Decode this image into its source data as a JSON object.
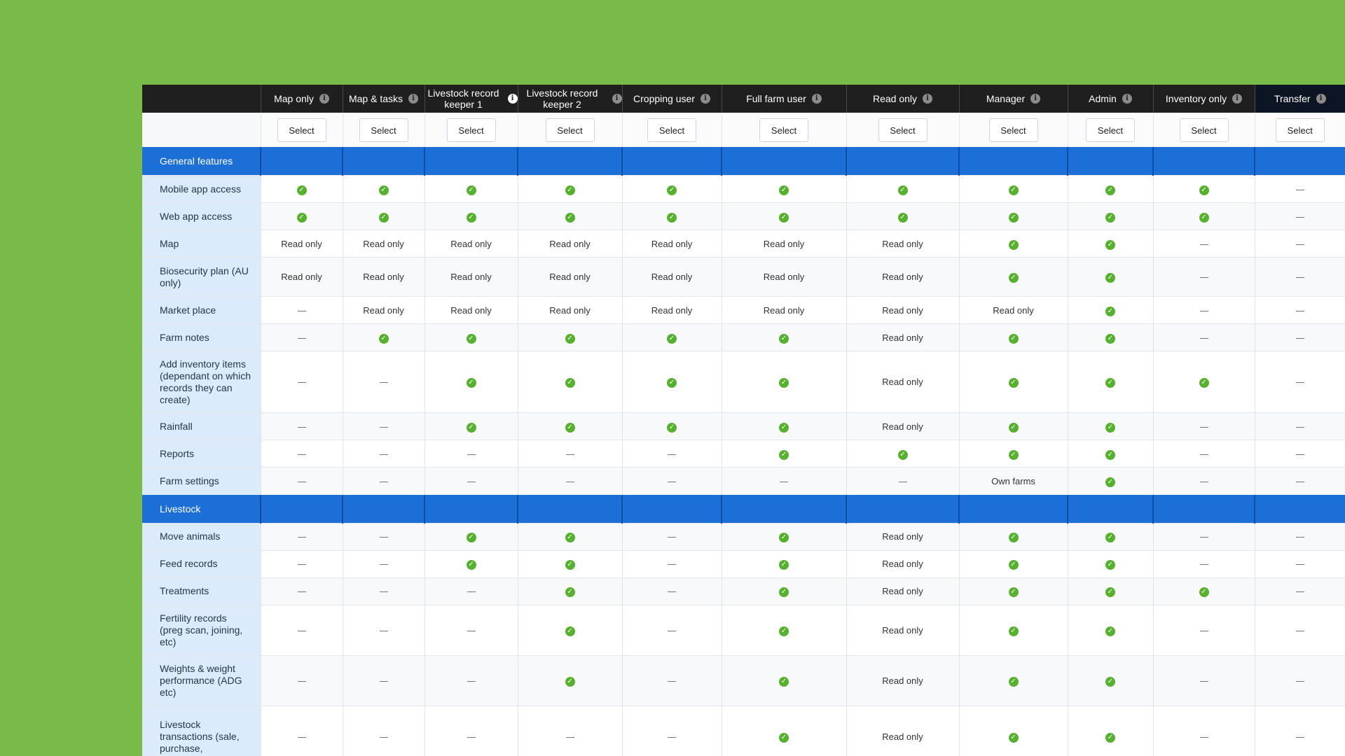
{
  "columns": [
    {
      "label": "Map only"
    },
    {
      "label": "Map & tasks"
    },
    {
      "label": "Livestock record keeper 1"
    },
    {
      "label": "Livestock record keeper 2"
    },
    {
      "label": "Cropping user"
    },
    {
      "label": "Full farm user"
    },
    {
      "label": "Read only"
    },
    {
      "label": "Manager"
    },
    {
      "label": "Admin"
    },
    {
      "label": "Inventory only"
    },
    {
      "label": "Transfer"
    }
  ],
  "select_label": "Select",
  "status_text": {
    "read_only": "Read only",
    "own_farms": "Own farms"
  },
  "icons": {
    "check": "check-circle-icon",
    "dash": "dash-icon",
    "info": "info-icon"
  },
  "colors": {
    "background": "#79bb48",
    "header": "#1f1f1f",
    "section": "#1c6fd6",
    "label_bg": "#dcebfb",
    "check": "#58b030"
  },
  "sections": [
    {
      "title": "General features",
      "rows": [
        {
          "label": "Mobile app access",
          "cells": [
            "Y",
            "Y",
            "Y",
            "Y",
            "Y",
            "Y",
            "Y",
            "Y",
            "Y",
            "Y",
            "-"
          ]
        },
        {
          "label": "Web app access",
          "cells": [
            "Y",
            "Y",
            "Y",
            "Y",
            "Y",
            "Y",
            "Y",
            "Y",
            "Y",
            "Y",
            "-"
          ]
        },
        {
          "label": "Map",
          "cells": [
            "Read only",
            "Read only",
            "Read only",
            "Read only",
            "Read only",
            "Read only",
            "Read only",
            "Y",
            "Y",
            "-",
            "-"
          ]
        },
        {
          "label": "Biosecurity plan (AU only)",
          "cells": [
            "Read only",
            "Read only",
            "Read only",
            "Read only",
            "Read only",
            "Read only",
            "Read only",
            "Y",
            "Y",
            "-",
            "-"
          ]
        },
        {
          "label": "Market place",
          "cells": [
            "-",
            "Read only",
            "Read only",
            "Read only",
            "Read only",
            "Read only",
            "Read only",
            "Read only",
            "Y",
            "-",
            "-"
          ]
        },
        {
          "label": "Farm notes",
          "cells": [
            "-",
            "Y",
            "Y",
            "Y",
            "Y",
            "Y",
            "Read only",
            "Y",
            "Y",
            "-",
            "-"
          ]
        },
        {
          "label": "Add inventory items (dependant on which records they can create)",
          "cells": [
            "-",
            "-",
            "Y",
            "Y",
            "Y",
            "Y",
            "Read only",
            "Y",
            "Y",
            "Y",
            "-"
          ]
        },
        {
          "label": "Rainfall",
          "cells": [
            "-",
            "-",
            "Y",
            "Y",
            "Y",
            "Y",
            "Read only",
            "Y",
            "Y",
            "-",
            "-"
          ]
        },
        {
          "label": "Reports",
          "cells": [
            "-",
            "-",
            "-",
            "-",
            "-",
            "Y",
            "Y",
            "Y",
            "Y",
            "-",
            "-"
          ]
        },
        {
          "label": "Farm settings",
          "cells": [
            "-",
            "-",
            "-",
            "-",
            "-",
            "-",
            "-",
            "Own farms",
            "Y",
            "-",
            "-"
          ]
        }
      ]
    },
    {
      "title": "Livestock",
      "rows": [
        {
          "label": "Move animals",
          "cells": [
            "-",
            "-",
            "Y",
            "Y",
            "-",
            "Y",
            "Read only",
            "Y",
            "Y",
            "-",
            "-"
          ]
        },
        {
          "label": "Feed records",
          "cells": [
            "-",
            "-",
            "Y",
            "Y",
            "-",
            "Y",
            "Read only",
            "Y",
            "Y",
            "-",
            "-"
          ]
        },
        {
          "label": "Treatments",
          "cells": [
            "-",
            "-",
            "-",
            "Y",
            "-",
            "Y",
            "Read only",
            "Y",
            "Y",
            "Y",
            "-"
          ]
        },
        {
          "label": "Fertility records (preg scan, joining, etc)",
          "cells": [
            "-",
            "-",
            "-",
            "Y",
            "-",
            "Y",
            "Read only",
            "Y",
            "Y",
            "-",
            "-"
          ]
        },
        {
          "label": "Weights & weight performance (ADG etc)",
          "cells": [
            "-",
            "-",
            "-",
            "Y",
            "-",
            "Y",
            "Read only",
            "Y",
            "Y",
            "-",
            "-"
          ]
        },
        {
          "label": "Livestock transactions (sale, purchase,",
          "cells": [
            "-",
            "-",
            "-",
            "-",
            "-",
            "Y",
            "Read only",
            "Y",
            "Y",
            "-",
            "-"
          ]
        }
      ]
    }
  ]
}
